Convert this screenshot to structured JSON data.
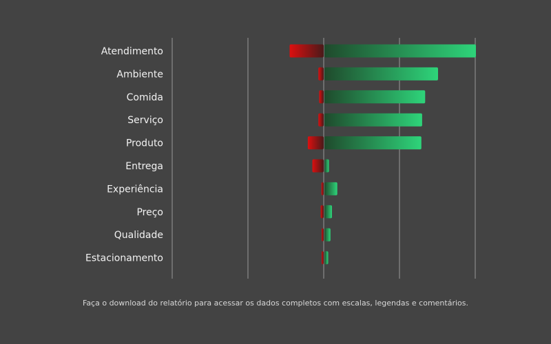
{
  "chart_data": {
    "type": "bar",
    "orientation": "horizontal",
    "diverging": true,
    "categories": [
      "Atendimento",
      "Ambiente",
      "Comida",
      "Serviço",
      "Produto",
      "Entrega",
      "Experiência",
      "Preço",
      "Qualidade",
      "Estacionamento"
    ],
    "series": [
      {
        "values": [
          -45,
          -7,
          -6,
          -7,
          -21,
          -15,
          -3,
          -4,
          -2,
          -1
        ]
      },
      {
        "values": [
          200,
          150,
          133,
          129,
          128,
          6,
          17,
          10,
          8,
          5
        ]
      }
    ],
    "xlim": [
      -200,
      200
    ],
    "grid": true,
    "colors": {
      "negative": "#d40f0f",
      "positive": "#2ed47a",
      "background": "#434343",
      "gridline": "#9a9a9a"
    }
  },
  "footer": {
    "note": "Faça o download do relatório para acessar os dados completos com escalas, legendas e comentários."
  }
}
